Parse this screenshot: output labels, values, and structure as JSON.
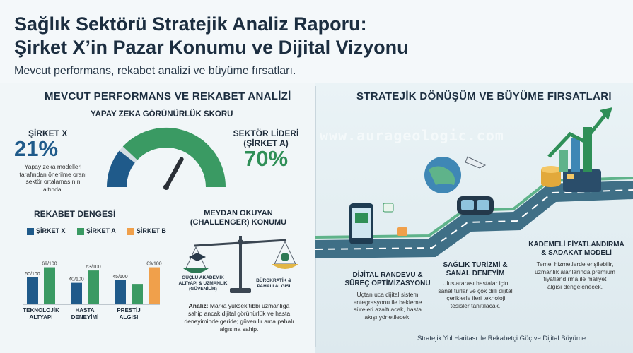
{
  "header": {
    "title_line1": "Sağlık Sektörü Stratejik Analiz Raporu:",
    "title_line2": "Şirket X’in Pazar Konumu ve Dijital Vizyonu",
    "subtitle": "Mevcut performans, rekabet analizi ve büyüme fırsatları."
  },
  "left": {
    "heading": "MEVCUT PERFORMANS VE REKABET ANALİZİ",
    "gauge": {
      "title": "YAPAY ZEKA GÖRÜNÜRLÜK SKORU",
      "company_label": "ŞİRKET X",
      "company_value": "21%",
      "company_fraction": 0.21,
      "company_note_1": "Yapay zeka modelleri",
      "company_note_2": "tarafından önerilme oranı",
      "company_note_3": "sektör ortalamasının",
      "company_note_4": "altında.",
      "leader_label_1": "SEKTÖR LİDERİ",
      "leader_label_2": "(ŞİRKET A)",
      "leader_value": "70%",
      "leader_fraction": 0.7
    },
    "chart_title": "REKABET DENGESİ",
    "challenger": {
      "title_1": "MEYDAN OKUYAN",
      "title_2": "(CHALLENGER) KONUMU",
      "left_pan_1": "GÜÇLÜ AKADEMİK",
      "left_pan_2": "ALTYAPI & UZMANLIK",
      "left_pan_3": "(GÜVENİLİR)",
      "right_pan_1": "BÜROKRATİK &",
      "right_pan_2": "PAHALI ALGISI",
      "analysis_label": "Analiz:",
      "analysis_1": "Marka yüksek tıbbi uzmanlığa",
      "analysis_2": "sahip ancak dijital görünürlük ve hasta",
      "analysis_3": "deneyiminde geride; güvenilir ama pahalı",
      "analysis_4": "algısına sahip."
    }
  },
  "chart_data": {
    "type": "bar",
    "title": "REKABET DENGESİ",
    "categories": [
      "TEKNOLOJİK ALTYAPI",
      "HASTA DENEYİMİ",
      "PRESTİJ ALGISI"
    ],
    "category_lines": [
      [
        "TEKNOLOJİK",
        "ALTYAPI"
      ],
      [
        "HASTA",
        "DENEYİMİ"
      ],
      [
        "PRESTİJ",
        "ALGISI"
      ]
    ],
    "series": [
      {
        "name": "ŞİRKET X",
        "values": [
          50,
          40,
          45
        ],
        "labels": [
          "50/100",
          "40/100",
          "45/100"
        ],
        "color": "#1f5a8a"
      },
      {
        "name": "ŞİRKET A",
        "values": [
          69,
          63,
          38
        ],
        "labels": [
          "69/100",
          "63/100",
          ""
        ],
        "color": "#3a9a63"
      },
      {
        "name": "ŞİRKET B",
        "values": [
          null,
          null,
          69
        ],
        "labels": [
          "",
          "",
          "69/100"
        ],
        "color": "#f0a04b"
      }
    ],
    "ylim": [
      0,
      100
    ],
    "legend": "top"
  },
  "right": {
    "heading": "STRATEJİK DÖNÜŞÜM VE BÜYÜME FIRSATLARI",
    "watermark": "www.aurageologic.com",
    "step1": {
      "title_1": "DİJİTAL RANDEVU &",
      "title_2": "SÜREÇ OPTİMİZASYONU",
      "text_1": "Uçtan uca dijital sistem",
      "text_2": "entegrasyonu ile bekleme",
      "text_3": "süreleri azaltılacak, hasta",
      "text_4": "akışı yönetilecek."
    },
    "step2": {
      "title_1": "SAĞLIK TURİZMİ &",
      "title_2": "SANAL DENEYİM",
      "text_1": "Uluslararası hastalar için",
      "text_2": "sanal turlar ve çok dilli dijital",
      "text_3": "içeriklerle ileri teknoloji",
      "text_4": "tesisler tanıtılacak."
    },
    "step3": {
      "title_1": "KADEMELİ FİYATLANDIRMA",
      "title_2": "& SADAKAT MODELİ",
      "text_1": "Temel hizmetlerde erişilebilir,",
      "text_2": "uzmanlık alanlarında premium",
      "text_3": "fiyatlandırma ile maliyet",
      "text_4": "algısı dengelenecek."
    },
    "footer": "Stratejik Yol Haritası ile Rekabetçi Güç ve Dijital Büyüme."
  },
  "icons": {
    "gauge": "gauge-icon",
    "scale": "balance-scale-icon",
    "phone": "smartphone-calendar-icon",
    "globe": "globe-plane-icon",
    "vr": "vr-headset-icon",
    "coins": "coins-card-icon",
    "growth": "growth-arrow-icon"
  }
}
